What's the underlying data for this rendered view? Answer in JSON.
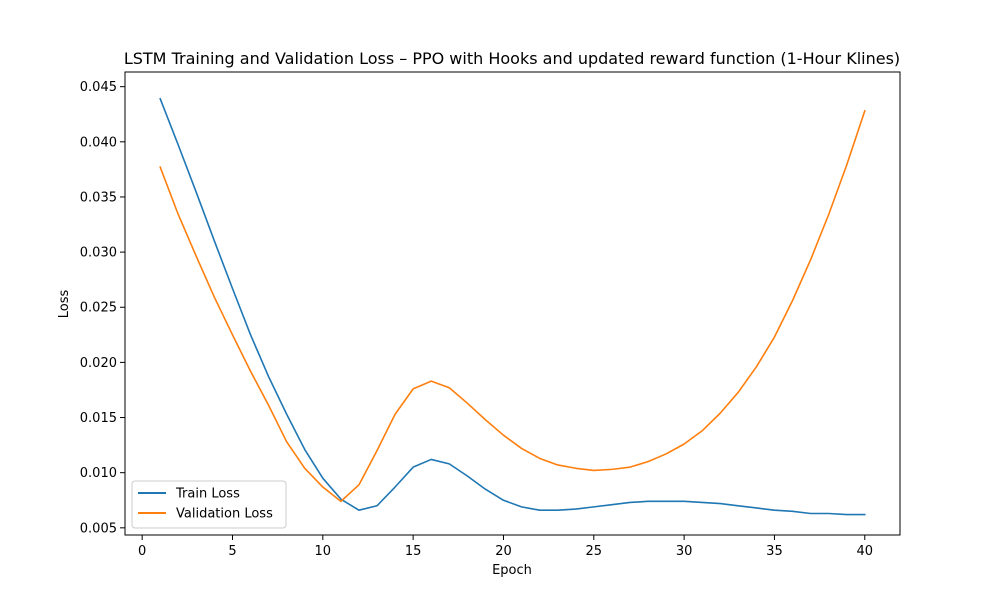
{
  "chart_data": {
    "type": "line",
    "title": "LSTM Training and Validation Loss – PPO with Hooks and updated reward function (1-Hour Klines)",
    "xlabel": "Epoch",
    "ylabel": "Loss",
    "xlim": [
      -0.95,
      41.95
    ],
    "ylim": [
      0.00435,
      0.04633
    ],
    "xticks": [
      0,
      5,
      10,
      15,
      20,
      25,
      30,
      35,
      40
    ],
    "xtick_labels": [
      "0",
      "5",
      "10",
      "15",
      "20",
      "25",
      "30",
      "35",
      "40"
    ],
    "yticks": [
      0.005,
      0.01,
      0.015,
      0.02,
      0.025,
      0.03,
      0.035,
      0.04,
      0.045
    ],
    "ytick_labels": [
      "0.005",
      "0.010",
      "0.015",
      "0.020",
      "0.025",
      "0.030",
      "0.035",
      "0.040",
      "0.045"
    ],
    "grid": false,
    "legend_position": "lower-left",
    "x": [
      1,
      2,
      3,
      4,
      5,
      6,
      7,
      8,
      9,
      10,
      11,
      12,
      13,
      14,
      15,
      16,
      17,
      18,
      19,
      20,
      21,
      22,
      23,
      24,
      25,
      26,
      27,
      28,
      29,
      30,
      31,
      32,
      33,
      34,
      35,
      36,
      37,
      38,
      39,
      40
    ],
    "series": [
      {
        "name": "Train Loss",
        "color": "#1f77b4",
        "values": [
          0.0439,
          0.0397,
          0.0354,
          0.031,
          0.0267,
          0.0225,
          0.0187,
          0.0153,
          0.0121,
          0.0095,
          0.0076,
          0.0066,
          0.007,
          0.0087,
          0.0105,
          0.0112,
          0.0108,
          0.0097,
          0.0085,
          0.0075,
          0.0069,
          0.0066,
          0.0066,
          0.0067,
          0.0069,
          0.0071,
          0.0073,
          0.0074,
          0.0074,
          0.0074,
          0.0073,
          0.0072,
          0.007,
          0.0068,
          0.0066,
          0.0065,
          0.0063,
          0.0063,
          0.0062,
          0.0062
        ]
      },
      {
        "name": "Validation Loss",
        "color": "#ff7f0e",
        "values": [
          0.0377,
          0.0334,
          0.0296,
          0.0259,
          0.0225,
          0.0192,
          0.0161,
          0.0128,
          0.0104,
          0.0087,
          0.0074,
          0.0089,
          0.012,
          0.0153,
          0.0176,
          0.0183,
          0.0177,
          0.0163,
          0.0148,
          0.0134,
          0.0122,
          0.0113,
          0.0107,
          0.0104,
          0.0102,
          0.0103,
          0.0105,
          0.011,
          0.0117,
          0.0126,
          0.0138,
          0.0154,
          0.0173,
          0.0196,
          0.0223,
          0.0256,
          0.0293,
          0.0334,
          0.0379,
          0.0428
        ]
      }
    ]
  }
}
